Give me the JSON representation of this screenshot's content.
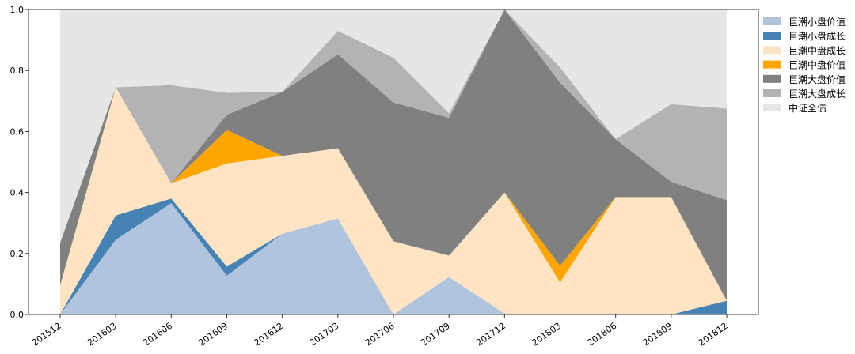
{
  "chart_data": {
    "type": "area",
    "stacked": true,
    "categories": [
      "201512",
      "201603",
      "201606",
      "201609",
      "201612",
      "201703",
      "201706",
      "201709",
      "201712",
      "201803",
      "201806",
      "201809",
      "201812"
    ],
    "ylim": [
      0,
      1.0
    ],
    "yticks": [
      "0.0",
      "0.2",
      "0.4",
      "0.6",
      "0.8",
      "1.0"
    ],
    "grid": false,
    "legend_position": "right",
    "series": [
      {
        "name": "巨潮小盘价值",
        "color": "#b0c4de",
        "values": [
          0.0,
          0.245,
          0.365,
          0.127,
          0.265,
          0.315,
          0.0,
          0.123,
          0.003,
          0.0,
          0.0,
          0.0,
          0.0
        ]
      },
      {
        "name": "巨潮小盘成长",
        "color": "#4682b4",
        "values": [
          0.0,
          0.08,
          0.015,
          0.03,
          0.0,
          0.0,
          0.0,
          0.0,
          0.0,
          0.0,
          0.0,
          0.0,
          0.045
        ]
      },
      {
        "name": "巨潮中盘成长",
        "color": "#ffe4c4",
        "values": [
          0.095,
          0.42,
          0.05,
          0.338,
          0.255,
          0.23,
          0.24,
          0.07,
          0.397,
          0.105,
          0.385,
          0.385,
          0.0
        ]
      },
      {
        "name": "巨潮中盘价值",
        "color": "#ffa500",
        "values": [
          0.0,
          0.0,
          0.0,
          0.11,
          0.0,
          0.0,
          0.0,
          0.0,
          0.0,
          0.055,
          0.0,
          0.0,
          0.0
        ]
      },
      {
        "name": "巨潮大盘价值",
        "color": "#808080",
        "values": [
          0.14,
          0.0,
          0.0,
          0.05,
          0.21,
          0.308,
          0.455,
          0.452,
          0.6,
          0.6,
          0.19,
          0.05,
          0.33
        ]
      },
      {
        "name": "巨潮大盘成长",
        "color": "#b3b3b3",
        "values": [
          0.0,
          0.0,
          0.322,
          0.072,
          0.0,
          0.077,
          0.147,
          0.015,
          0.0,
          0.05,
          0.0,
          0.255,
          0.3
        ]
      },
      {
        "name": "中证全债",
        "color": "#e6e6e6",
        "values": [
          0.765,
          0.255,
          0.248,
          0.273,
          0.27,
          0.07,
          0.158,
          0.34,
          0.0,
          0.19,
          0.425,
          0.31,
          0.325
        ]
      }
    ]
  }
}
